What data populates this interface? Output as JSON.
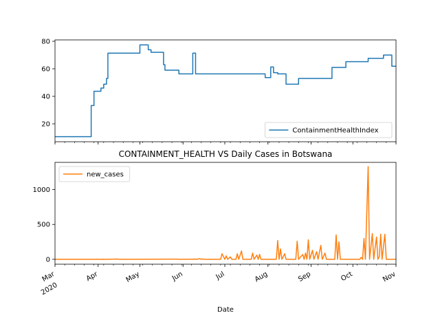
{
  "figure": {
    "title": "CONTAINMENT_HEALTH VS Daily Cases in Botswana",
    "xlabel": "Date"
  },
  "chart_data": [
    {
      "type": "line",
      "series": [
        {
          "name": "ContainmentHealthIndex",
          "color": "#1f77b4",
          "points": [
            [
              "2020-03-01",
              10.7
            ],
            [
              "2020-03-27",
              10.7
            ],
            [
              "2020-03-27",
              33.3
            ],
            [
              "2020-03-29",
              33.3
            ],
            [
              "2020-03-29",
              43.7
            ],
            [
              "2020-04-03",
              43.7
            ],
            [
              "2020-04-03",
              46.0
            ],
            [
              "2020-04-05",
              46.0
            ],
            [
              "2020-04-05",
              48.8
            ],
            [
              "2020-04-07",
              48.8
            ],
            [
              "2020-04-07",
              53.0
            ],
            [
              "2020-04-08",
              53.0
            ],
            [
              "2020-04-08",
              71.4
            ],
            [
              "2020-05-01",
              71.4
            ],
            [
              "2020-05-01",
              77.4
            ],
            [
              "2020-05-07",
              77.4
            ],
            [
              "2020-05-07",
              73.8
            ],
            [
              "2020-05-09",
              73.8
            ],
            [
              "2020-05-09",
              72.0
            ],
            [
              "2020-05-18",
              72.0
            ],
            [
              "2020-05-18",
              63.0
            ],
            [
              "2020-05-19",
              63.0
            ],
            [
              "2020-05-19",
              59.0
            ],
            [
              "2020-05-29",
              59.0
            ],
            [
              "2020-05-29",
              56.3
            ],
            [
              "2020-06-08",
              56.3
            ],
            [
              "2020-06-08",
              71.4
            ],
            [
              "2020-06-10",
              71.4
            ],
            [
              "2020-06-10",
              56.3
            ],
            [
              "2020-07-30",
              56.3
            ],
            [
              "2020-07-30",
              53.6
            ],
            [
              "2020-08-03",
              53.6
            ],
            [
              "2020-08-03",
              61.3
            ],
            [
              "2020-08-05",
              61.3
            ],
            [
              "2020-08-05",
              57.2
            ],
            [
              "2020-08-08",
              57.2
            ],
            [
              "2020-08-08",
              56.3
            ],
            [
              "2020-08-14",
              56.3
            ],
            [
              "2020-08-14",
              48.8
            ],
            [
              "2020-08-23",
              48.8
            ],
            [
              "2020-08-23",
              53.0
            ],
            [
              "2020-09-16",
              53.0
            ],
            [
              "2020-09-16",
              61.0
            ],
            [
              "2020-09-26",
              61.0
            ],
            [
              "2020-09-26",
              65.2
            ],
            [
              "2020-10-12",
              65.2
            ],
            [
              "2020-10-12",
              67.6
            ],
            [
              "2020-10-23",
              67.6
            ],
            [
              "2020-10-23",
              70.0
            ],
            [
              "2020-10-29",
              70.0
            ],
            [
              "2020-10-29",
              61.9
            ],
            [
              "2020-11-01",
              61.9
            ]
          ]
        }
      ],
      "y_ticks": [
        20,
        40,
        60,
        80
      ],
      "ylim": [
        7,
        81
      ],
      "legend": "lower right"
    },
    {
      "type": "line",
      "series": [
        {
          "name": "new_cases",
          "color": "#ff7f0e",
          "points": [
            [
              "2020-03-01",
              0
            ],
            [
              "2020-03-30",
              0
            ],
            [
              "2020-03-31",
              3
            ],
            [
              "2020-04-01",
              0
            ],
            [
              "2020-04-05",
              1
            ],
            [
              "2020-04-06",
              0
            ],
            [
              "2020-04-15",
              4
            ],
            [
              "2020-04-16",
              0
            ],
            [
              "2020-05-28",
              3
            ],
            [
              "2020-05-29",
              0
            ],
            [
              "2020-06-10",
              3
            ],
            [
              "2020-06-11",
              0
            ],
            [
              "2020-06-13",
              10
            ],
            [
              "2020-06-14",
              0
            ],
            [
              "2020-06-15",
              5
            ],
            [
              "2020-06-16",
              0
            ],
            [
              "2020-06-28",
              0
            ],
            [
              "2020-06-29",
              80
            ],
            [
              "2020-06-30",
              40
            ],
            [
              "2020-07-01",
              0
            ],
            [
              "2020-07-02",
              50
            ],
            [
              "2020-07-03",
              0
            ],
            [
              "2020-07-05",
              35
            ],
            [
              "2020-07-06",
              0
            ],
            [
              "2020-07-09",
              0
            ],
            [
              "2020-07-10",
              80
            ],
            [
              "2020-07-11",
              0
            ],
            [
              "2020-07-13",
              120
            ],
            [
              "2020-07-14",
              0
            ],
            [
              "2020-07-20",
              0
            ],
            [
              "2020-07-21",
              90
            ],
            [
              "2020-07-22",
              0
            ],
            [
              "2020-07-24",
              60
            ],
            [
              "2020-07-25",
              0
            ],
            [
              "2020-07-26",
              70
            ],
            [
              "2020-07-27",
              0
            ],
            [
              "2020-08-07",
              0
            ],
            [
              "2020-08-08",
              270
            ],
            [
              "2020-08-09",
              0
            ],
            [
              "2020-08-10",
              150
            ],
            [
              "2020-08-11",
              0
            ],
            [
              "2020-08-13",
              80
            ],
            [
              "2020-08-14",
              0
            ],
            [
              "2020-08-21",
              0
            ],
            [
              "2020-08-22",
              260
            ],
            [
              "2020-08-23",
              0
            ],
            [
              "2020-08-26",
              70
            ],
            [
              "2020-08-27",
              0
            ],
            [
              "2020-08-28",
              90
            ],
            [
              "2020-08-29",
              0
            ],
            [
              "2020-08-30",
              280
            ],
            [
              "2020-08-31",
              0
            ],
            [
              "2020-09-02",
              130
            ],
            [
              "2020-09-03",
              0
            ],
            [
              "2020-09-05",
              110
            ],
            [
              "2020-09-06",
              0
            ],
            [
              "2020-09-08",
              200
            ],
            [
              "2020-09-09",
              0
            ],
            [
              "2020-09-11",
              90
            ],
            [
              "2020-09-12",
              0
            ],
            [
              "2020-09-18",
              0
            ],
            [
              "2020-09-19",
              350
            ],
            [
              "2020-09-20",
              0
            ],
            [
              "2020-09-21",
              250
            ],
            [
              "2020-09-22",
              0
            ],
            [
              "2020-10-06",
              0
            ],
            [
              "2020-10-07",
              30
            ],
            [
              "2020-10-08",
              0
            ],
            [
              "2020-10-09",
              300
            ],
            [
              "2020-10-10",
              0
            ],
            [
              "2020-10-12",
              1330
            ],
            [
              "2020-10-13",
              0
            ],
            [
              "2020-10-15",
              370
            ],
            [
              "2020-10-16",
              0
            ],
            [
              "2020-10-18",
              320
            ],
            [
              "2020-10-19",
              0
            ],
            [
              "2020-10-20",
              40
            ],
            [
              "2020-10-21",
              360
            ],
            [
              "2020-10-22",
              0
            ],
            [
              "2020-10-24",
              360
            ],
            [
              "2020-10-25",
              0
            ],
            [
              "2020-11-01",
              0
            ]
          ]
        }
      ],
      "y_ticks": [
        0,
        500,
        1000
      ],
      "ylim": [
        -70,
        1390
      ],
      "legend": "upper left"
    }
  ],
  "x_axis": {
    "xlim": [
      "2020-03-01",
      "2020-11-01"
    ],
    "ticks": [
      {
        "date": "2020-03-01",
        "label": "Mar",
        "sublabel": "2020"
      },
      {
        "date": "2020-04-01",
        "label": "Apr"
      },
      {
        "date": "2020-05-01",
        "label": "May"
      },
      {
        "date": "2020-06-01",
        "label": "Jun"
      },
      {
        "date": "2020-07-01",
        "label": "Jul"
      },
      {
        "date": "2020-08-01",
        "label": "Aug"
      },
      {
        "date": "2020-09-01",
        "label": "Sep"
      },
      {
        "date": "2020-10-01",
        "label": "Oct"
      },
      {
        "date": "2020-11-01",
        "label": "Nov"
      }
    ]
  }
}
